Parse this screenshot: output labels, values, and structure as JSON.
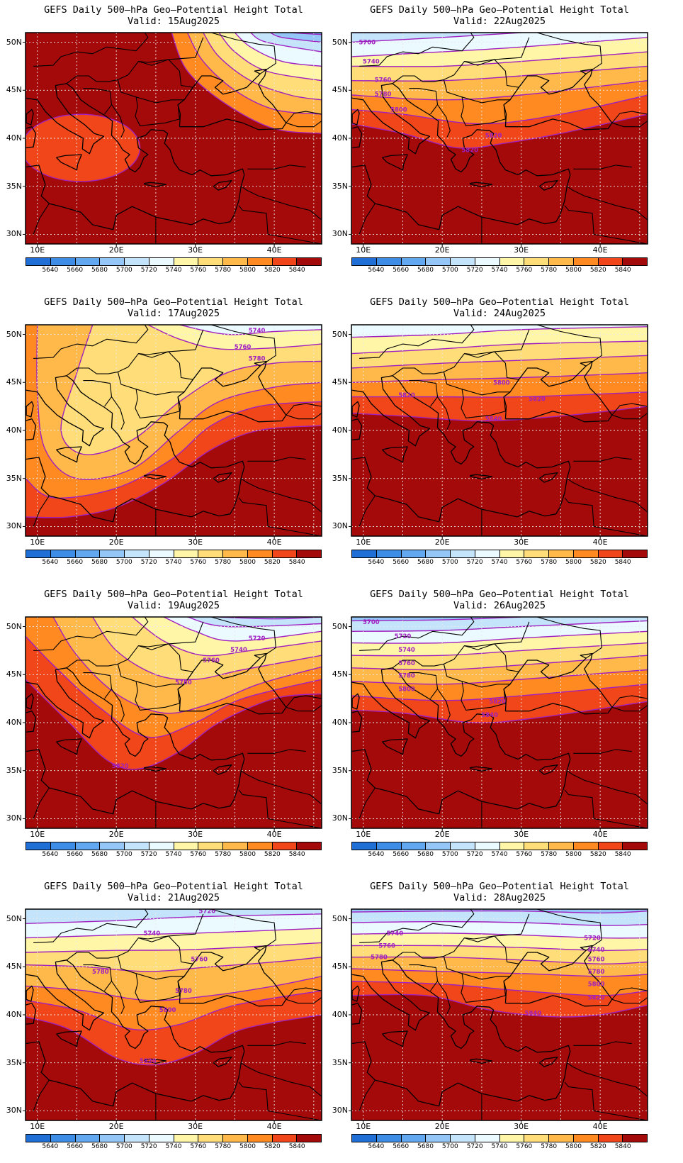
{
  "panels": [
    {
      "title": "GEFS Daily 500–hPa Geo–Potential Height Total",
      "valid": "Valid: 15Aug2025",
      "contour_labels": []
    },
    {
      "title": "GEFS Daily 500–hPa Geo–Potential Height Total",
      "valid": "Valid: 22Aug2025",
      "contour_labels": [
        "5700",
        "5740",
        "5760",
        "5780",
        "5800",
        "5820",
        "5820"
      ]
    },
    {
      "title": "GEFS Daily 500–hPa Geo–Potential Height Total",
      "valid": "Valid: 17Aug2025",
      "contour_labels": [
        "5740",
        "5760",
        "5780"
      ]
    },
    {
      "title": "GEFS Daily 500–hPa Geo–Potential Height Total",
      "valid": "Valid: 24Aug2025",
      "contour_labels": [
        "5800",
        "5820",
        "5820",
        "5840"
      ]
    },
    {
      "title": "GEFS Daily 500–hPa Geo–Potential Height Total",
      "valid": "Valid: 19Aug2025",
      "contour_labels": [
        "5720",
        "5740",
        "5760",
        "5780",
        "5820"
      ]
    },
    {
      "title": "GEFS Daily 500–hPa Geo–Potential Height Total",
      "valid": "Valid: 26Aug2025",
      "contour_labels": [
        "5700",
        "5720",
        "5740",
        "5760",
        "5780",
        "5800",
        "5820",
        "5840"
      ]
    },
    {
      "title": "GEFS Daily 500–hPa Geo–Potential Height Total",
      "valid": "Valid: 21Aug2025",
      "contour_labels": [
        "5720",
        "5740",
        "5760",
        "5780",
        "5780",
        "5800",
        "5820"
      ]
    },
    {
      "title": "GEFS Daily 500–hPa Geo–Potential Height Total",
      "valid": "Valid: 28Aug2025",
      "contour_labels": [
        "5740",
        "5760",
        "5780",
        "5720",
        "5740",
        "5760",
        "5780",
        "5800",
        "5820",
        "5840"
      ]
    }
  ],
  "axes": {
    "lat_labels": [
      "50N",
      "45N",
      "40N",
      "35N",
      "30N"
    ],
    "lon_labels": [
      "10E",
      "20E",
      "30E",
      "40E"
    ]
  },
  "colorbar": {
    "labels": [
      "5640",
      "5660",
      "5680",
      "5700",
      "5720",
      "5740",
      "5760",
      "5780",
      "5800",
      "5820",
      "5840"
    ],
    "colors": [
      "#1f6fd6",
      "#3d8de6",
      "#62a8f0",
      "#94c6f7",
      "#c4e4fb",
      "#eafaff",
      "#fff6a8",
      "#ffdd78",
      "#ffb84a",
      "#ff8a22",
      "#f0461a",
      "#a50a0a"
    ]
  },
  "contour_color": "#a020c0"
}
